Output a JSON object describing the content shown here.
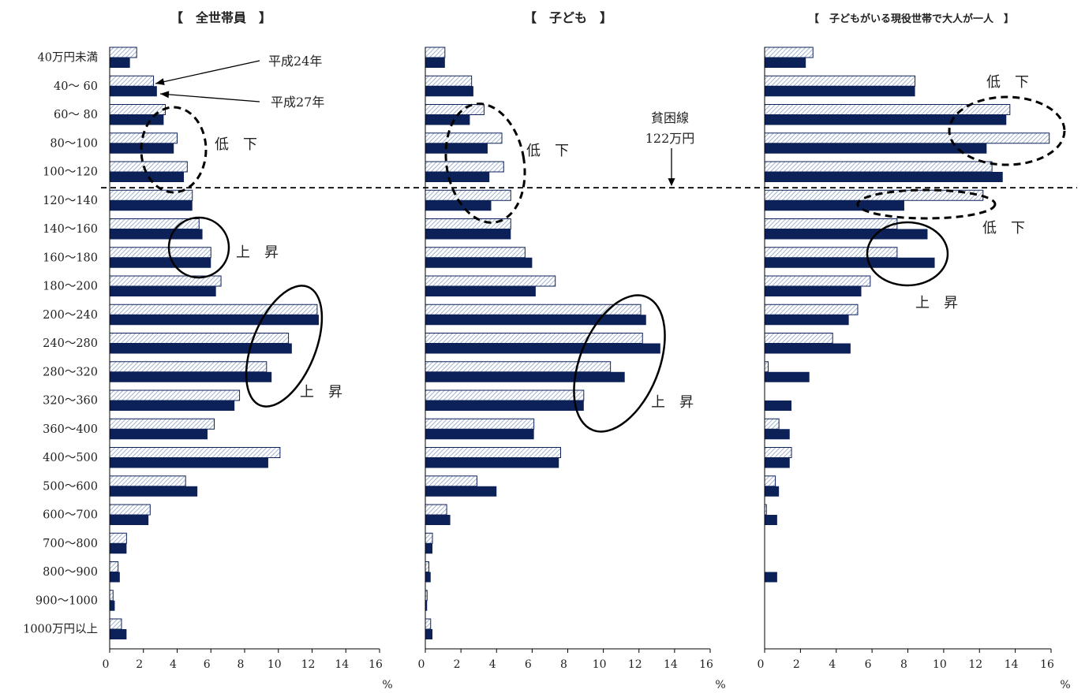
{
  "chart_data": {
    "type": "bar",
    "orientation": "horizontal",
    "categories": [
      "40万円未満",
      "40～ 60",
      "60～ 80",
      "80～100",
      "100～120",
      "120～140",
      "140～160",
      "160～180",
      "180～200",
      "200～240",
      "240～280",
      "280～320",
      "320～360",
      "360～400",
      "400～500",
      "500～600",
      "600～700",
      "700～800",
      "800～900",
      "900～1000",
      "1000万円以上"
    ],
    "xticks": [
      "0",
      "2",
      "4",
      "6",
      "8",
      "10",
      "12",
      "14",
      "16"
    ],
    "xlim": [
      0,
      16
    ],
    "x_unit": "%",
    "legend_placement": "callout arrows in first panel",
    "series_names": [
      "平成24年",
      "平成27年"
    ],
    "series_colors": {
      "平成24年": "hatched-light",
      "平成27年": "#0d2159"
    },
    "poverty_line": {
      "label_line1": "貧困線",
      "label_line2": "122万円",
      "between_categories": [
        4,
        5
      ]
    },
    "panels": [
      {
        "title": "【　全世帯員　】",
        "series": [
          {
            "name": "平成24年",
            "values": [
              1.6,
              2.6,
              3.3,
              4.0,
              4.6,
              4.9,
              5.3,
              6.0,
              6.6,
              12.3,
              10.6,
              9.3,
              7.7,
              6.2,
              10.1,
              4.5,
              2.4,
              1.0,
              0.5,
              0.2,
              0.7
            ]
          },
          {
            "name": "平成27年",
            "values": [
              1.2,
              2.8,
              3.2,
              3.8,
              4.4,
              4.9,
              5.5,
              6.0,
              6.3,
              12.4,
              10.8,
              9.6,
              7.4,
              5.8,
              9.4,
              5.2,
              2.3,
              1.0,
              0.6,
              0.3,
              1.0
            ]
          }
        ],
        "annotations": [
          {
            "text": "低　下"
          },
          {
            "text": "上　昇"
          },
          {
            "text": "上　昇"
          }
        ]
      },
      {
        "title": "【　子ども　】",
        "series": [
          {
            "name": "平成24年",
            "values": [
              1.1,
              2.6,
              3.3,
              4.3,
              4.4,
              4.8,
              4.8,
              5.6,
              7.3,
              12.1,
              12.2,
              10.4,
              8.9,
              6.1,
              7.6,
              2.9,
              1.2,
              0.4,
              0.2,
              0.1,
              0.3
            ]
          },
          {
            "name": "平成27年",
            "values": [
              1.1,
              2.7,
              2.5,
              3.5,
              3.6,
              3.7,
              4.8,
              6.0,
              6.2,
              12.4,
              13.2,
              11.2,
              8.9,
              6.1,
              7.5,
              4.0,
              1.4,
              0.4,
              0.3,
              0.1,
              0.4
            ]
          }
        ],
        "annotations": [
          {
            "text": "低　下"
          },
          {
            "text": "上　昇"
          }
        ]
      },
      {
        "title": "【　子どもがいる現役世帯で大人が一人　】",
        "series": [
          {
            "name": "平成24年",
            "values": [
              2.7,
              8.4,
              13.7,
              15.9,
              12.7,
              12.2,
              7.4,
              7.4,
              5.9,
              5.2,
              3.8,
              0.2,
              0.0,
              0.8,
              1.5,
              0.6,
              0.1,
              0.0,
              0.0,
              0.0,
              0.0
            ]
          },
          {
            "name": "平成27年",
            "values": [
              2.3,
              8.4,
              13.5,
              12.4,
              13.3,
              7.8,
              9.1,
              9.5,
              5.4,
              4.7,
              4.8,
              2.5,
              1.5,
              1.4,
              1.4,
              0.8,
              0.7,
              0.0,
              0.7,
              0.0,
              0.0
            ]
          }
        ],
        "annotations": [
          {
            "text": "低　下"
          },
          {
            "text": "低　下"
          },
          {
            "text": "上　昇"
          }
        ]
      }
    ]
  }
}
